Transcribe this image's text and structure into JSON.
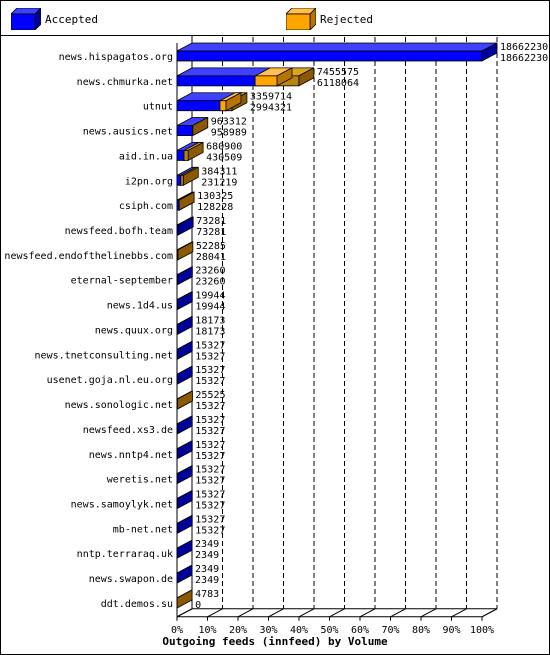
{
  "legend": {
    "accepted_label": "Accepted",
    "rejected_label": "Rejected",
    "accepted_color": "#0000ff",
    "rejected_color": "#ffa500"
  },
  "chart_data": {
    "type": "bar",
    "orientation": "horizontal",
    "style": "3d",
    "title": "Outgoing feeds (innfeed) by Volume",
    "xlabel": "",
    "ylabel": "",
    "xlim": [
      0,
      100
    ],
    "x_unit": "%",
    "x_ticks": [
      "0%",
      "10%",
      "20%",
      "30%",
      "40%",
      "50%",
      "60%",
      "70%",
      "80%",
      "90%",
      "100%"
    ],
    "grid": "dashed vertical lines",
    "legend_position": "top",
    "categories": [
      "news.hispagatos.org",
      "news.chmurka.net",
      "utnut",
      "news.ausics.net",
      "aid.in.ua",
      "i2pn.org",
      "csiph.com",
      "newsfeed.bofh.team",
      "newsfeed.endofthelinebbs.com",
      "eternal-september",
      "news.1d4.us",
      "news.quux.org",
      "news.tnetconsulting.net",
      "usenet.goja.nl.eu.org",
      "news.sonologic.net",
      "newsfeed.xs3.de",
      "news.nntp4.net",
      "weretis.net",
      "news.samoylyk.net",
      "mb-net.net",
      "nntp.terraraq.uk",
      "news.swapon.de",
      "ddt.demos.su"
    ],
    "series": [
      {
        "name": "Accepted",
        "color": "#0000ff",
        "values": [
          18662230,
          7455575,
          3359714,
          963312,
          680900,
          384311,
          130325,
          73281,
          52285,
          23260,
          19944,
          18173,
          15327,
          15327,
          25525,
          15327,
          15327,
          15327,
          15327,
          15327,
          2349,
          2349,
          4783
        ]
      },
      {
        "name": "Rejected",
        "color": "#ffa500",
        "values": [
          18662230,
          6118064,
          2994321,
          958989,
          430509,
          231219,
          128228,
          73281,
          28041,
          23260,
          19944,
          18173,
          15327,
          15327,
          15327,
          15327,
          15327,
          15327,
          15327,
          15327,
          2349,
          2349,
          0
        ]
      }
    ]
  }
}
